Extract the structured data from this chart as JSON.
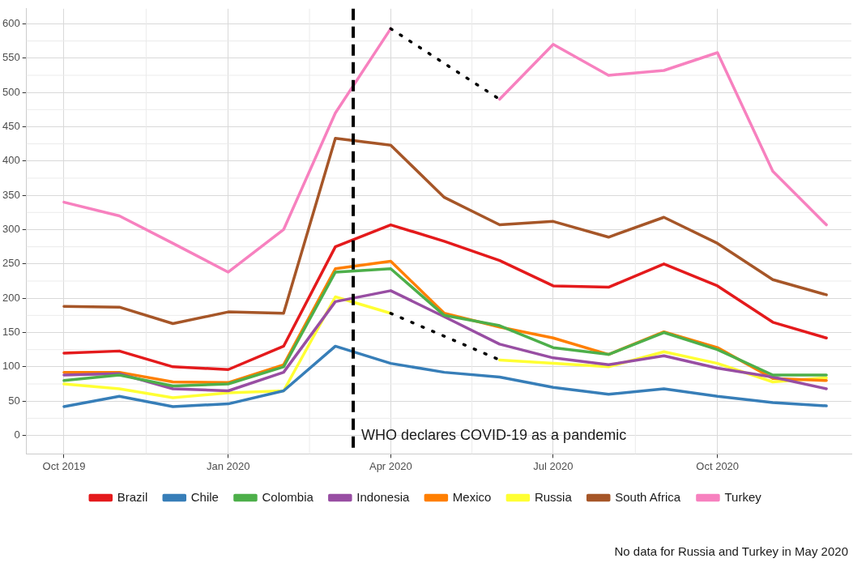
{
  "chart_data": {
    "type": "line",
    "x": [
      "2019-10",
      "2019-11",
      "2019-12",
      "2020-01",
      "2020-02",
      "2020-03",
      "2020-04",
      "2020-05",
      "2020-06",
      "2020-07",
      "2020-08",
      "2020-09",
      "2020-10",
      "2020-11",
      "2020-12"
    ],
    "series": [
      {
        "name": "Brazil",
        "color": "#e41a1c",
        "values": [
          120,
          123,
          100,
          96,
          130,
          275,
          307,
          283,
          255,
          218,
          216,
          250,
          218,
          165,
          142
        ]
      },
      {
        "name": "Chile",
        "color": "#377eb8",
        "values": [
          42,
          57,
          42,
          46,
          65,
          130,
          105,
          92,
          85,
          70,
          60,
          68,
          57,
          48,
          43
        ]
      },
      {
        "name": "Colombia",
        "color": "#4daf4a",
        "values": [
          80,
          88,
          72,
          75,
          100,
          238,
          243,
          175,
          160,
          128,
          118,
          150,
          125,
          88,
          88
        ]
      },
      {
        "name": "Indonesia",
        "color": "#984ea3",
        "values": [
          88,
          90,
          68,
          65,
          92,
          195,
          211,
          173,
          133,
          113,
          103,
          116,
          98,
          85,
          68
        ]
      },
      {
        "name": "Mexico",
        "color": "#ff7f00",
        "values": [
          92,
          92,
          78,
          77,
          103,
          243,
          254,
          178,
          158,
          142,
          118,
          151,
          128,
          83,
          80
        ]
      },
      {
        "name": "Russia",
        "color": "#ffff33",
        "values": [
          75,
          68,
          55,
          62,
          65,
          202,
          178,
          null,
          110,
          105,
          100,
          122,
          105,
          78,
          84
        ]
      },
      {
        "name": "South Africa",
        "color": "#a65628",
        "values": [
          188,
          187,
          163,
          180,
          178,
          433,
          423,
          347,
          307,
          312,
          289,
          318,
          280,
          227,
          205
        ]
      },
      {
        "name": "Turkey",
        "color": "#f781bf",
        "values": [
          340,
          320,
          280,
          238,
          300,
          470,
          593,
          null,
          490,
          570,
          525,
          532,
          558,
          385,
          307
        ]
      },
      {
        "color": "#000000",
        "line_style": "dotted",
        "x": [
          "2020-04",
          "2020-06"
        ],
        "values": [
          178,
          110
        ]
      },
      {
        "color": "#000000",
        "line_style": "dotted",
        "x": [
          "2020-04",
          "2020-06"
        ],
        "values": [
          593,
          490
        ]
      }
    ],
    "xlim": [
      "2019-09-10",
      "2020-12-15"
    ],
    "xticks": [
      {
        "value": "2019-10",
        "label": "Oct 2019"
      },
      {
        "value": "2020-01",
        "label": "Jan 2020"
      },
      {
        "value": "2020-04",
        "label": "Apr 2020"
      },
      {
        "value": "2020-07",
        "label": "Jul 2020"
      },
      {
        "value": "2020-10",
        "label": "Oct 2020"
      }
    ],
    "ylim": [
      -27,
      622
    ],
    "yticks": [
      0,
      50,
      100,
      150,
      200,
      250,
      300,
      350,
      400,
      450,
      500,
      550,
      600
    ],
    "grid": true,
    "legend": "bottom",
    "ref_lines": [
      {
        "axis": "x",
        "value": "2020-03-11",
        "label": "WHO declares COVID-19 as a pandemic",
        "color": "#000000",
        "line_style": "dashed"
      }
    ],
    "annotations": [
      "No data for Russia and Turkey in May 2020"
    ]
  }
}
